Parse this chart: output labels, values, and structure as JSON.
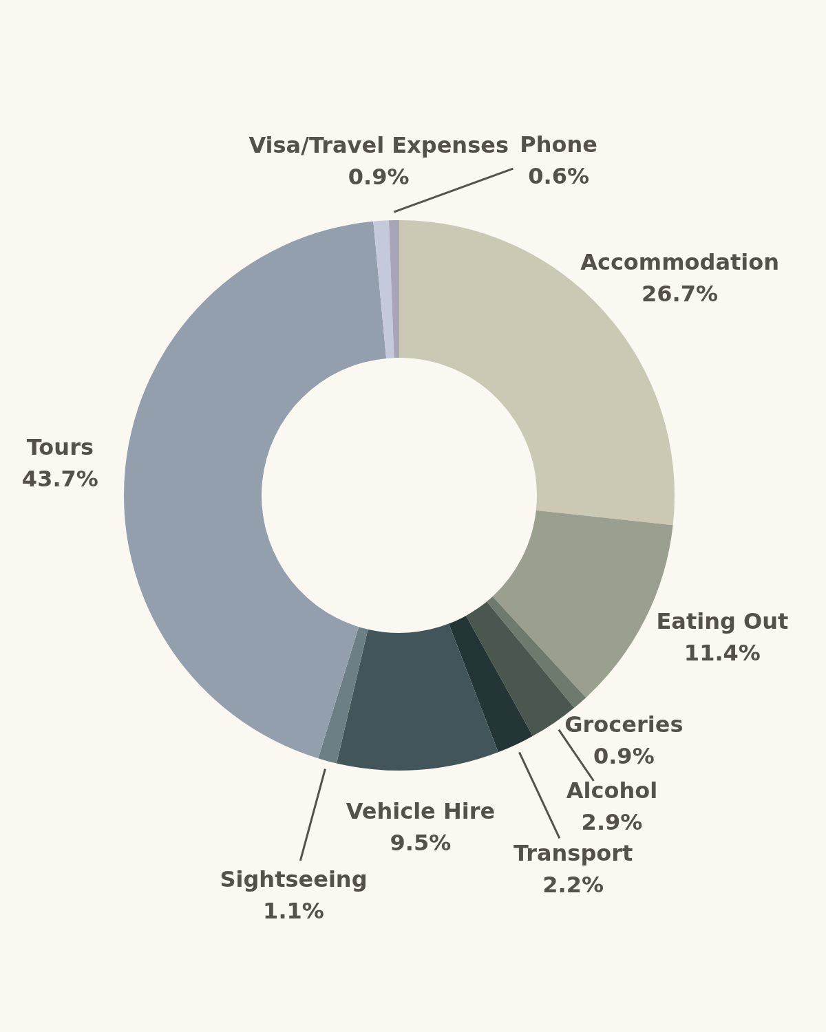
{
  "chart_data": {
    "type": "donut",
    "categories": [
      "Accommodation",
      "Eating Out",
      "Groceries",
      "Alcohol",
      "Transport",
      "Vehicle Hire",
      "Sightseeing",
      "Tours",
      "Visa/Travel Expenses",
      "Phone"
    ],
    "values": [
      26.7,
      11.4,
      0.9,
      2.9,
      2.2,
      9.5,
      1.1,
      43.7,
      0.9,
      0.6
    ],
    "value_labels": [
      "26.7%",
      "11.4%",
      "0.9%",
      "2.9%",
      "2.2%",
      "9.5%",
      "1.1%",
      "43.7%",
      "0.9%",
      "0.6%"
    ],
    "colors": [
      "#cbc8b4",
      "#9a9f90",
      "#6f7a6e",
      "#4a574e",
      "#233535",
      "#425559",
      "#6b7f84",
      "#949fad",
      "#c4c9dc",
      "#a9a5b8"
    ],
    "legend": false
  }
}
